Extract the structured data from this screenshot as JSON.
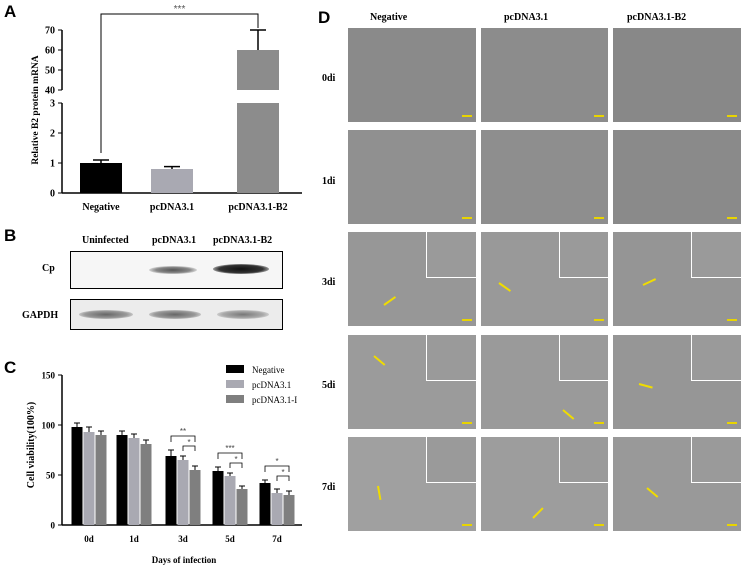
{
  "panels": {
    "a": "A",
    "b": "B",
    "c": "C",
    "d": "D"
  },
  "panel_a": {
    "chart_data": {
      "type": "bar",
      "categories": [
        "Negative",
        "pcDNA3.1",
        "pcDNA3.1-B2"
      ],
      "values": [
        1.0,
        0.8,
        60
      ],
      "errors": [
        0.1,
        0.08,
        10
      ],
      "ylabel": "Relative B2 protein mRNA",
      "yaxis_break": [
        3,
        40
      ],
      "lower_ticks": [
        "0",
        "1",
        "2",
        "3"
      ],
      "upper_ticks": [
        "40",
        "50",
        "60",
        "70"
      ],
      "significance": "***",
      "colors": [
        "#000000",
        "#a9a9b2",
        "#8c8c8c"
      ]
    }
  },
  "panel_b": {
    "columns": [
      "Uninfected",
      "pcDNA3.1",
      "pcDNA3.1-B2"
    ],
    "rows": [
      "Cp",
      "GAPDH"
    ]
  },
  "panel_c": {
    "chart_data": {
      "type": "bar",
      "categories": [
        "0d",
        "1d",
        "3d",
        "5d",
        "7d"
      ],
      "series": [
        {
          "name": "Negative",
          "values": [
            98,
            90,
            69,
            54,
            42
          ],
          "errors": [
            4,
            4,
            6,
            4,
            3
          ],
          "color": "#000000"
        },
        {
          "name": "pcDNA3.1",
          "values": [
            93,
            87,
            65,
            49,
            32
          ],
          "errors": [
            5,
            4,
            4,
            3,
            4
          ],
          "color": "#a9a9b2"
        },
        {
          "name": "pcDNA3.1-I",
          "values": [
            90,
            81,
            55,
            36,
            30
          ],
          "errors": [
            4,
            4,
            4,
            3,
            4
          ],
          "color": "#7f7f7f"
        }
      ],
      "ylabel": "Cell viability(100%)",
      "xlabel": "Days of infection",
      "ylim": [
        0,
        150
      ],
      "yticks": [
        "0",
        "50",
        "100",
        "150"
      ],
      "brackets": [
        {
          "day": "3d",
          "labels": [
            "**",
            "*"
          ]
        },
        {
          "day": "5d",
          "labels": [
            "***",
            "*"
          ]
        },
        {
          "day": "7d",
          "labels": [
            "*",
            "*"
          ]
        }
      ]
    }
  },
  "panel_d": {
    "columns": [
      "Negative",
      "pcDNA3.1",
      "pcDNA3.1-B2"
    ],
    "rows": [
      "0di",
      "1di",
      "3di",
      "5di",
      "7di"
    ]
  }
}
